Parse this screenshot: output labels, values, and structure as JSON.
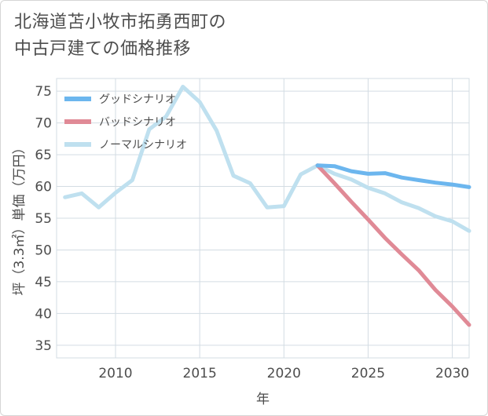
{
  "title_lines": [
    "北海道苫小牧市拓勇西町の",
    "中古戸建ての価格推移"
  ],
  "chart_data": {
    "type": "line",
    "title": "北海道苫小牧市拓勇西町の中古戸建ての価格推移",
    "xlabel": "年",
    "ylabel": "坪（3.3㎡）単価（万円）",
    "xlim": [
      2006.5,
      2031
    ],
    "ylim": [
      33,
      77
    ],
    "xticks": [
      2010,
      2015,
      2020,
      2025,
      2030
    ],
    "yticks": [
      35,
      40,
      45,
      50,
      55,
      60,
      65,
      70,
      75
    ],
    "grid": true,
    "legend_position": "top-left",
    "series": [
      {
        "name": "グッドシナリオ",
        "color": "#6cb6ee",
        "points": [
          [
            2022,
            63.3
          ],
          [
            2023,
            63.2
          ],
          [
            2024,
            62.4
          ],
          [
            2025,
            62.0
          ],
          [
            2026,
            62.1
          ],
          [
            2027,
            61.4
          ],
          [
            2028,
            61.0
          ],
          [
            2029,
            60.6
          ],
          [
            2030,
            60.3
          ],
          [
            2031,
            59.9
          ]
        ]
      },
      {
        "name": "バッドシナリオ",
        "color": "#e08a96",
        "points": [
          [
            2022,
            63.3
          ],
          [
            2023,
            60.5
          ],
          [
            2024,
            57.6
          ],
          [
            2025,
            54.8
          ],
          [
            2026,
            51.9
          ],
          [
            2027,
            49.3
          ],
          [
            2028,
            46.8
          ],
          [
            2029,
            43.7
          ],
          [
            2030,
            41.1
          ],
          [
            2031,
            38.2
          ]
        ]
      },
      {
        "name": "ノーマルシナリオ",
        "color": "#bfe0ef",
        "points": [
          [
            2007,
            58.3
          ],
          [
            2008,
            58.9
          ],
          [
            2009,
            56.7
          ],
          [
            2010,
            59.0
          ],
          [
            2011,
            61.0
          ],
          [
            2012,
            69.0
          ],
          [
            2013,
            71.0
          ],
          [
            2014,
            75.7
          ],
          [
            2015,
            73.3
          ],
          [
            2016,
            68.8
          ],
          [
            2017,
            61.7
          ],
          [
            2018,
            60.5
          ],
          [
            2019,
            56.7
          ],
          [
            2020,
            56.9
          ],
          [
            2021,
            61.9
          ],
          [
            2022,
            63.3
          ],
          [
            2023,
            62.0
          ],
          [
            2024,
            61.1
          ],
          [
            2025,
            59.8
          ],
          [
            2026,
            58.9
          ],
          [
            2027,
            57.5
          ],
          [
            2028,
            56.6
          ],
          [
            2029,
            55.3
          ],
          [
            2030,
            54.5
          ],
          [
            2031,
            53.0
          ]
        ]
      }
    ]
  }
}
